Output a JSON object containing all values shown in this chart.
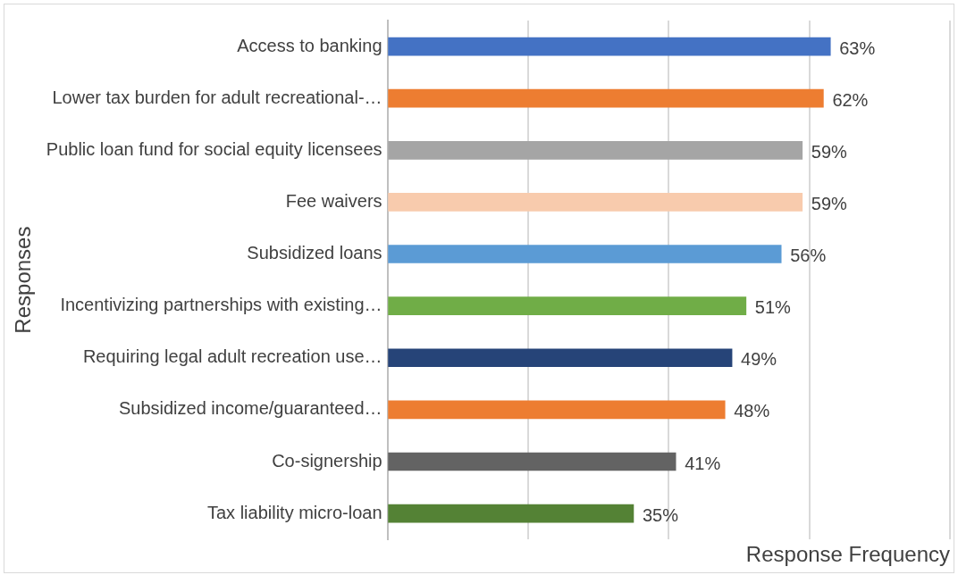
{
  "chart_data": {
    "type": "bar",
    "orientation": "horizontal",
    "xlabel": "Response Frequency",
    "ylabel": "Responses",
    "categories": [
      "Access to banking",
      "Lower tax burden for adult recreational-…",
      "Public loan fund for social equity licensees",
      "Fee waivers",
      "Subsidized loans",
      "Incentivizing partnerships with existing…",
      "Requiring legal adult recreation use…",
      "Subsidized income/guaranteed…",
      "Co-signership",
      "Tax liability micro-loan"
    ],
    "values": [
      63,
      62,
      59,
      59,
      56,
      51,
      49,
      48,
      41,
      35
    ],
    "colors": [
      "#4472c4",
      "#ed7d31",
      "#a5a5a5",
      "#f8cbad",
      "#5b9bd5",
      "#70ad47",
      "#264478",
      "#ed7d31",
      "#636363",
      "#548235"
    ],
    "value_labels": [
      "63%",
      "62%",
      "59%",
      "59%",
      "56%",
      "51%",
      "49%",
      "48%",
      "41%",
      "35%"
    ],
    "xlim": [
      0,
      80
    ],
    "xticks": [
      {
        "value": 0,
        "label": null
      },
      {
        "value": 20,
        "label": null
      },
      {
        "value": 40,
        "label": null
      },
      {
        "value": 60,
        "label": null
      },
      {
        "value": 80,
        "label": null
      }
    ],
    "tick_labels": "y",
    "grid": "x",
    "legend": false
  }
}
